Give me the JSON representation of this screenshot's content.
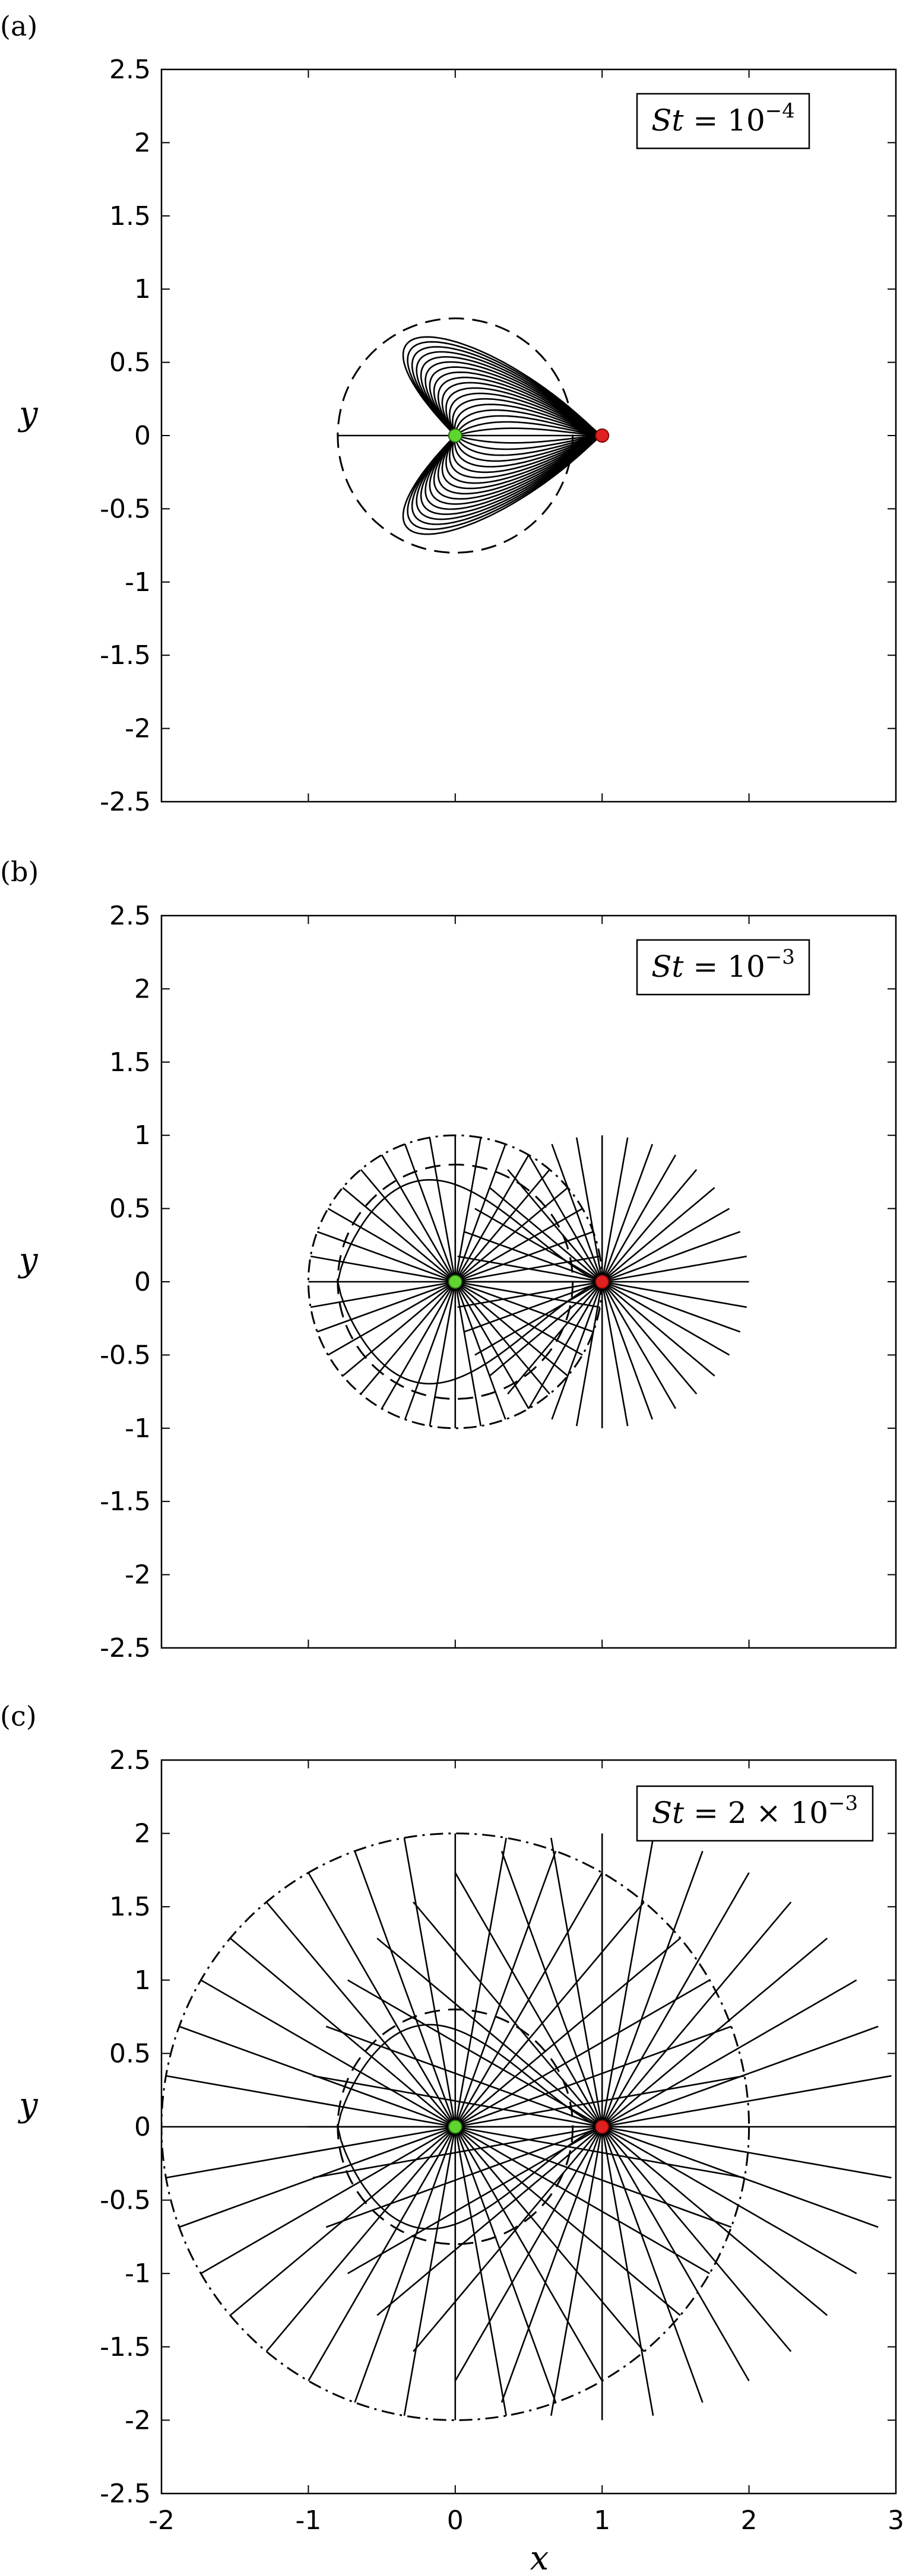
{
  "chart_data": [
    {
      "type": "line",
      "panel_label": "(a)",
      "annotation": {
        "var": "St",
        "eq": " = ",
        "value": "10",
        "exp": "−4"
      },
      "ylabel": "y",
      "xlabel": "",
      "xlim": [
        -2,
        3
      ],
      "ylim": [
        -2.5,
        2.5
      ],
      "xticks": [
        -2,
        -1,
        0,
        1,
        2,
        3
      ],
      "yticks": [
        2.5,
        2,
        1.5,
        1,
        0.5,
        0,
        -0.5,
        -1,
        -1.5,
        -2,
        -2.5
      ],
      "ytick_labels": [
        "2.5",
        "2",
        "1.5",
        "1",
        "0.5",
        "0",
        "-0.5",
        "-1",
        "-1.5",
        "-2",
        "-2.5"
      ],
      "xtick_labels_shown": false,
      "trajectory_family": "cardioid",
      "n_trajectories": 36,
      "dashed_circle_radius": 0.8,
      "dashdot_circle_radius": 0,
      "source_point": {
        "x": 0,
        "y": 0,
        "color": "#5fd52f"
      },
      "target_point": {
        "x": 1,
        "y": 0,
        "color": "#e02020"
      }
    },
    {
      "type": "line",
      "panel_label": "(b)",
      "annotation": {
        "var": "St",
        "eq": " = ",
        "value": "10",
        "exp": "−3"
      },
      "ylabel": "y",
      "xlabel": "",
      "xlim": [
        -2,
        3
      ],
      "ylim": [
        -2.5,
        2.5
      ],
      "xticks": [
        -2,
        -1,
        0,
        1,
        2,
        3
      ],
      "yticks": [
        2.5,
        2,
        1.5,
        1,
        0.5,
        0,
        -0.5,
        -1,
        -1.5,
        -2,
        -2.5
      ],
      "ytick_labels": [
        "2.5",
        "2",
        "1.5",
        "1",
        "0.5",
        "0",
        "-0.5",
        "-1",
        "-1.5",
        "-2",
        "-2.5"
      ],
      "xtick_labels_shown": false,
      "trajectory_family": "radial",
      "n_trajectories": 36,
      "dashed_circle_radius": 0.8,
      "dashdot_circle_radius": 1.0,
      "source_point": {
        "x": 0,
        "y": 0,
        "color": "#5fd52f"
      },
      "target_point": {
        "x": 1,
        "y": 0,
        "color": "#e02020"
      }
    },
    {
      "type": "line",
      "panel_label": "(c)",
      "annotation": {
        "var": "St",
        "eq": " = 2 × ",
        "value": "10",
        "exp": "−3"
      },
      "ylabel": "y",
      "xlabel": "x",
      "xlim": [
        -2,
        3
      ],
      "ylim": [
        -2.5,
        2.5
      ],
      "xticks": [
        -2,
        -1,
        0,
        1,
        2,
        3
      ],
      "xtick_labels": [
        "-2",
        "-1",
        "0",
        "1",
        "2",
        "3"
      ],
      "yticks": [
        2.5,
        2,
        1.5,
        1,
        0.5,
        0,
        -0.5,
        -1,
        -1.5,
        -2,
        -2.5
      ],
      "ytick_labels": [
        "2.5",
        "2",
        "1.5",
        "1",
        "0.5",
        "0",
        "-0.5",
        "-1",
        "-1.5",
        "-2",
        "-2.5"
      ],
      "xtick_labels_shown": true,
      "trajectory_family": "radial",
      "n_trajectories": 36,
      "dashed_circle_radius": 0.8,
      "dashdot_circle_radius": 2.0,
      "source_point": {
        "x": 0,
        "y": 0,
        "color": "#5fd52f"
      },
      "target_point": {
        "x": 1,
        "y": 0,
        "color": "#e02020"
      }
    }
  ]
}
